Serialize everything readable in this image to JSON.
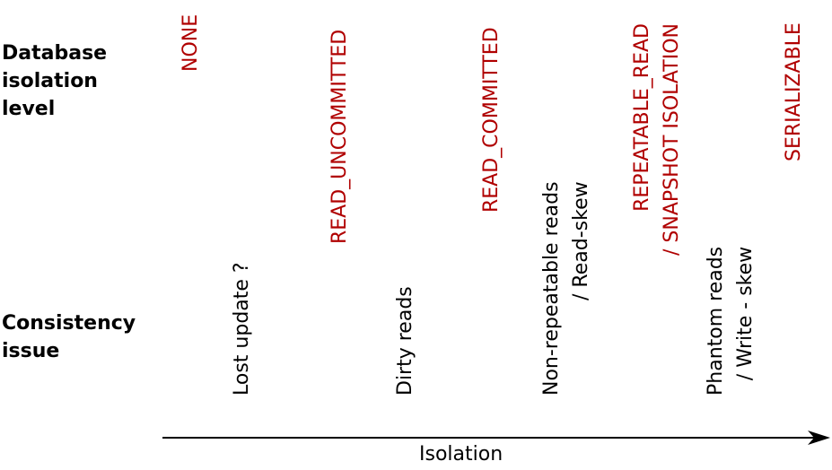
{
  "labels": {
    "database_isolation_level": [
      "Database",
      "isolation",
      "level"
    ],
    "consistency_issue": [
      "Consistency",
      "issue"
    ]
  },
  "isolation_levels": [
    {
      "lines": [
        "NONE"
      ]
    },
    {
      "lines": [
        "READ_UNCOMMITTED"
      ]
    },
    {
      "lines": [
        "READ_COMMITTED"
      ]
    },
    {
      "lines": [
        "REPEATABLE_READ",
        "/ SNAPSHOT ISOLATION"
      ]
    },
    {
      "lines": [
        "SERIALIZABLE"
      ]
    }
  ],
  "consistency_issues": [
    {
      "lines": [
        "Lost update ?"
      ]
    },
    {
      "lines": [
        "Dirty reads"
      ]
    },
    {
      "lines": [
        "Non-repeatable reads",
        "/ Read-skew"
      ]
    },
    {
      "lines": [
        "Phantom reads",
        "/ Write - skew"
      ]
    }
  ],
  "axis": {
    "label": "Isolation"
  },
  "colors": {
    "level_text": "#b00000",
    "issue_text": "#000000",
    "axis": "#000000"
  }
}
